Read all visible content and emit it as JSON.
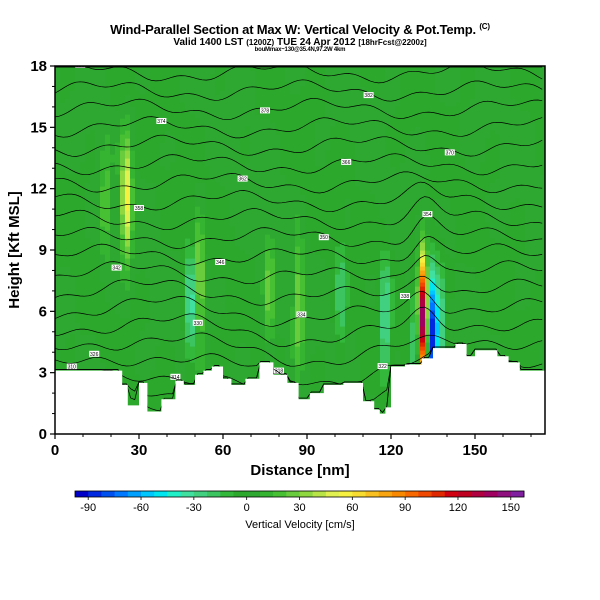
{
  "header": {
    "title": "Wind-Parallel Section at Max W: Vertical Velocity & Pot.Temp.",
    "title_mark": "(C)",
    "valid_main": "Valid 1400 LST",
    "valid_run": "(1200Z)",
    "valid_date": "TUE 24 Apr 2012",
    "valid_fcst": "[18hrFcst@2200z]",
    "subtitle": "bouMmax~130@35.4N,97.2W 4km"
  },
  "colorbar": {
    "label": "Vertical Velocity [cm/s]",
    "ticks": [
      "-90",
      "-60",
      "-30",
      "0",
      "30",
      "60",
      "90",
      "120",
      "150"
    ],
    "min": -97.5,
    "max": 157.5,
    "step": 7.5,
    "colors": [
      "#0000c8",
      "#0028e0",
      "#0050f0",
      "#0078ff",
      "#00a0ff",
      "#00c8ff",
      "#00e6f0",
      "#20f0c8",
      "#40e0a0",
      "#40d080",
      "#3cc460",
      "#34b83c",
      "#2ca82c",
      "#2ea830",
      "#34b430",
      "#48c034",
      "#68cc3c",
      "#90d840",
      "#b8e448",
      "#e0f050",
      "#f8f040",
      "#f8dc30",
      "#f8c020",
      "#f8a410",
      "#f88800",
      "#f86800",
      "#f04800",
      "#e02800",
      "#d00010",
      "#c00020",
      "#b00040",
      "#a00060",
      "#901080",
      "#8020a0"
    ]
  },
  "chart_data": {
    "type": "heatmap",
    "title": "Wind-Parallel Section at Max W: Vertical Velocity & Pot.Temp.",
    "xlabel": "Distance [nm]",
    "ylabel": "Height [Kft MSL]",
    "xlim": [
      0,
      175
    ],
    "ylim": [
      0,
      18
    ],
    "xticks": [
      0,
      30,
      60,
      90,
      120,
      150
    ],
    "yticks": [
      0,
      3,
      6,
      9,
      12,
      15,
      18
    ],
    "colorbar_label": "Vertical Velocity [cm/s]",
    "colorbar_ticks": [
      -90,
      -60,
      -30,
      0,
      30,
      60,
      90,
      120,
      150
    ],
    "terrain_kft": [
      [
        0,
        3.1
      ],
      [
        24,
        3.1
      ],
      [
        24,
        2.4
      ],
      [
        26,
        2.4
      ],
      [
        26,
        1.4
      ],
      [
        30,
        1.4
      ],
      [
        30,
        2.5
      ],
      [
        33,
        2.5
      ],
      [
        33,
        1.1
      ],
      [
        38,
        1.1
      ],
      [
        38,
        1.7
      ],
      [
        43,
        1.7
      ],
      [
        43,
        2.6
      ],
      [
        46,
        2.6
      ],
      [
        46,
        2.4
      ],
      [
        50,
        2.4
      ],
      [
        50,
        2.9
      ],
      [
        53,
        2.9
      ],
      [
        53,
        3.1
      ],
      [
        56,
        3.1
      ],
      [
        56,
        3.3
      ],
      [
        60,
        3.3
      ],
      [
        60,
        2.7
      ],
      [
        63,
        2.7
      ],
      [
        63,
        2.4
      ],
      [
        68,
        2.4
      ],
      [
        68,
        2.7
      ],
      [
        73,
        2.7
      ],
      [
        73,
        3.5
      ],
      [
        78,
        3.5
      ],
      [
        78,
        2.9
      ],
      [
        83,
        2.9
      ],
      [
        83,
        2.5
      ],
      [
        87,
        2.5
      ],
      [
        87,
        1.7
      ],
      [
        91,
        1.7
      ],
      [
        91,
        2.0
      ],
      [
        96,
        2.0
      ],
      [
        96,
        2.4
      ],
      [
        103,
        2.4
      ],
      [
        103,
        2.5
      ],
      [
        110,
        2.5
      ],
      [
        110,
        1.6
      ],
      [
        114,
        1.6
      ],
      [
        114,
        1.2
      ],
      [
        116,
        1.2
      ],
      [
        116,
        1.0
      ],
      [
        118,
        1.0
      ],
      [
        118,
        1.3
      ],
      [
        120,
        1.3
      ],
      [
        120,
        3.3
      ],
      [
        125,
        3.3
      ],
      [
        125,
        3.4
      ],
      [
        131,
        3.4
      ],
      [
        131,
        3.7
      ],
      [
        135,
        3.7
      ],
      [
        135,
        4.2
      ],
      [
        143,
        4.2
      ],
      [
        143,
        4.4
      ],
      [
        147,
        4.4
      ],
      [
        147,
        3.8
      ],
      [
        150,
        3.8
      ],
      [
        150,
        4.1
      ],
      [
        158,
        4.1
      ],
      [
        158,
        3.8
      ],
      [
        162,
        3.8
      ],
      [
        162,
        3.5
      ],
      [
        166,
        3.5
      ],
      [
        166,
        3.1
      ],
      [
        175,
        3.1
      ]
    ],
    "w_features": [
      {
        "x": 131.5,
        "y": 5.6,
        "w": 150
      },
      {
        "x": 134.5,
        "y": 5.0,
        "w": -95
      },
      {
        "x": 129.0,
        "y": 5.3,
        "w": -30
      },
      {
        "x": 137.5,
        "y": 5.0,
        "w": -35
      },
      {
        "x": 25.5,
        "y": 11.5,
        "w": 55
      },
      {
        "x": 48.5,
        "y": 6.3,
        "w": -40
      },
      {
        "x": 51.5,
        "y": 7.6,
        "w": 40
      },
      {
        "x": 76.5,
        "y": 6.8,
        "w": 25
      },
      {
        "x": 87.0,
        "y": 6.3,
        "w": 30
      },
      {
        "x": 102.0,
        "y": 6.5,
        "w": -20
      },
      {
        "x": 118.0,
        "y": 5.8,
        "w": -30
      },
      {
        "x": 18.0,
        "y": 11.0,
        "w": 20
      }
    ],
    "theta_labels": [
      "310",
      "314",
      "318",
      "322",
      "326",
      "330",
      "334",
      "338",
      "342",
      "346",
      "350",
      "354",
      "358",
      "362",
      "366",
      "370",
      "374",
      "378",
      "382",
      "386",
      "390"
    ]
  }
}
